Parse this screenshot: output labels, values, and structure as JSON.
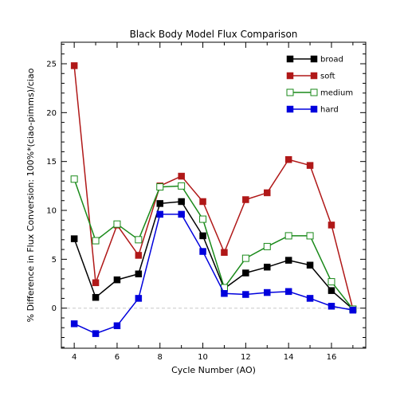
{
  "chart_data": {
    "type": "line",
    "title": "Black Body Model Flux Comparison",
    "xlabel": "Cycle Number (AO)",
    "ylabel": "% Difference in Flux Conversion: 100%*(ciao-pimms)/ciao",
    "xlim": [
      3.4,
      17.6
    ],
    "ylim": [
      -4.1,
      27.2
    ],
    "xticks": [
      4,
      6,
      8,
      10,
      12,
      14,
      16
    ],
    "yticks": [
      0,
      5,
      10,
      15,
      20,
      25
    ],
    "x_minor_ticks": [
      5,
      7,
      9,
      11,
      13,
      15,
      17
    ],
    "zero_line": true,
    "grid": false,
    "legend_position": "top-right",
    "x": [
      4,
      5,
      6,
      7,
      8,
      9,
      10,
      11,
      12,
      13,
      14,
      15,
      16,
      17
    ],
    "series": [
      {
        "name": "broad",
        "color": "#000000",
        "marker": "filled-square",
        "values": [
          7.1,
          1.1,
          2.9,
          3.5,
          10.7,
          10.9,
          7.4,
          2.0,
          3.6,
          4.2,
          4.9,
          4.4,
          1.8,
          -0.1
        ]
      },
      {
        "name": "soft",
        "color": "#b01818",
        "marker": "filled-square",
        "values": [
          24.8,
          2.6,
          8.5,
          5.4,
          12.5,
          13.5,
          10.9,
          5.7,
          11.1,
          11.8,
          15.2,
          14.6,
          8.5,
          -0.1
        ]
      },
      {
        "name": "medium",
        "color": "#1a8a1a",
        "marker": "open-square",
        "values": [
          13.2,
          6.9,
          8.6,
          7.0,
          12.4,
          12.5,
          9.1,
          2.1,
          5.1,
          6.3,
          7.4,
          7.4,
          2.7,
          -0.1
        ]
      },
      {
        "name": "hard",
        "color": "#0000dd",
        "marker": "filled-square",
        "values": [
          -1.6,
          -2.6,
          -1.8,
          1.0,
          9.6,
          9.6,
          5.8,
          1.5,
          1.4,
          1.6,
          1.7,
          1.0,
          0.2,
          -0.2
        ]
      }
    ]
  }
}
